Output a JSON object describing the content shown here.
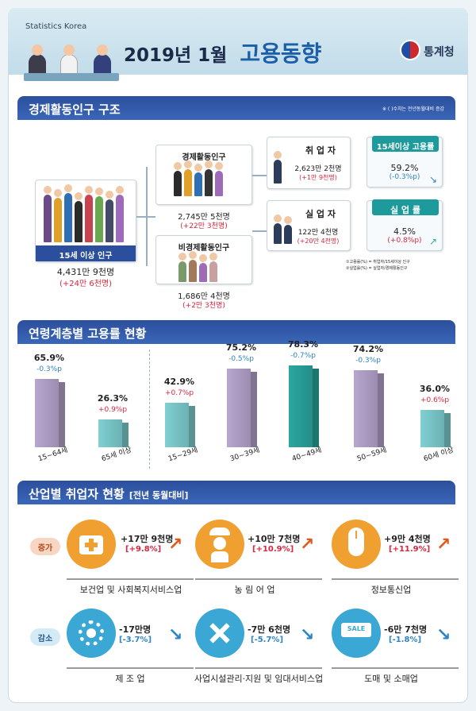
{
  "header": {
    "brand": "Statistics Korea",
    "title_a": "2019년 1월",
    "title_b": "고용동향",
    "agency": "통계청"
  },
  "sec1": {
    "title": "경제활동인구 구조",
    "note": "※ ( )수치는 전년동월대비 증감"
  },
  "pop15": {
    "label": "15세 이상 인구",
    "value": "4,431만 9천명",
    "change": "(+24만 6천명)"
  },
  "active": {
    "label": "경제활동인구",
    "value": "2,745만 5천명",
    "change": "(+22만 3천명)"
  },
  "inactive": {
    "label": "비경제활동인구",
    "value": "1,686만 4천명",
    "change": "(+2만 3천명)"
  },
  "employed": {
    "label": "취 업 자",
    "value": "2,623만 2천명",
    "change": "(+1만 9천명)"
  },
  "unemployed": {
    "label": "실 업 자",
    "value": "122만 4천명",
    "change": "(+20만 4천명)"
  },
  "emp_rate": {
    "label": "15세이상 고용률",
    "value": "59.2%",
    "change": "(-0.3%p)"
  },
  "unemp_rate": {
    "label": "실 업 률",
    "value": "4.5%",
    "change": "(+0.8%p)"
  },
  "footnotes": [
    "①고용률(%) = 취업자/15세이상 인구",
    "②실업률(%) = 실업자/경제활동인구"
  ],
  "sec2": {
    "title": "연령계층별 고용률 현황"
  },
  "chart_data": {
    "type": "bar",
    "categories": [
      "15~64세",
      "65세 이상",
      "15~29세",
      "30~39세",
      "40~49세",
      "50~59세",
      "60세 이상"
    ],
    "values": [
      65.9,
      26.3,
      42.9,
      75.2,
      78.3,
      74.2,
      36.0
    ],
    "value_labels": [
      "65.9%",
      "26.3%",
      "42.9%",
      "75.2%",
      "78.3%",
      "74.2%",
      "36.0%"
    ],
    "changes": [
      "-0.3%p",
      "+0.9%p",
      "+0.7%p",
      "-0.5%p",
      "-0.7%p",
      "-0.3%p",
      "+0.6%p"
    ],
    "colors": [
      "#b7a6cf",
      "#7fd0d2",
      "#7fd0d2",
      "#b7a6cf",
      "#2aa7a0",
      "#b7a6cf",
      "#7fd0d2"
    ]
  },
  "sec3": {
    "title": "산업별 취업자 현황",
    "sub": "[전년 동월대비]"
  },
  "increase_tag": "증가",
  "decrease_tag": "감소",
  "industries_up": [
    {
      "name": "보건업 및 사회복지서비스업",
      "value": "+17만 9천명",
      "pct": "[+9.8%]",
      "icon": "medical-kit-icon"
    },
    {
      "name": "농 림 어 업",
      "value": "+10만 7천명",
      "pct": "[+10.9%]",
      "icon": "farmer-icon"
    },
    {
      "name": "정보통신업",
      "value": "+9만 4천명",
      "pct": "[+11.9%]",
      "icon": "mouse-icon"
    }
  ],
  "industries_down": [
    {
      "name": "제 조 업",
      "value": "-17만명",
      "pct": "[-3.7%]",
      "icon": "gear-icon"
    },
    {
      "name": "사업시설관리·지원 및 임대서비스업",
      "value": "-7만 6천명",
      "pct": "[-5.7%]",
      "icon": "tools-icon"
    },
    {
      "name": "도매 및 소매업",
      "value": "-6만 7천명",
      "pct": "[-1.8%]",
      "icon": "sale-tag-icon"
    }
  ],
  "sale_text": "SALE"
}
